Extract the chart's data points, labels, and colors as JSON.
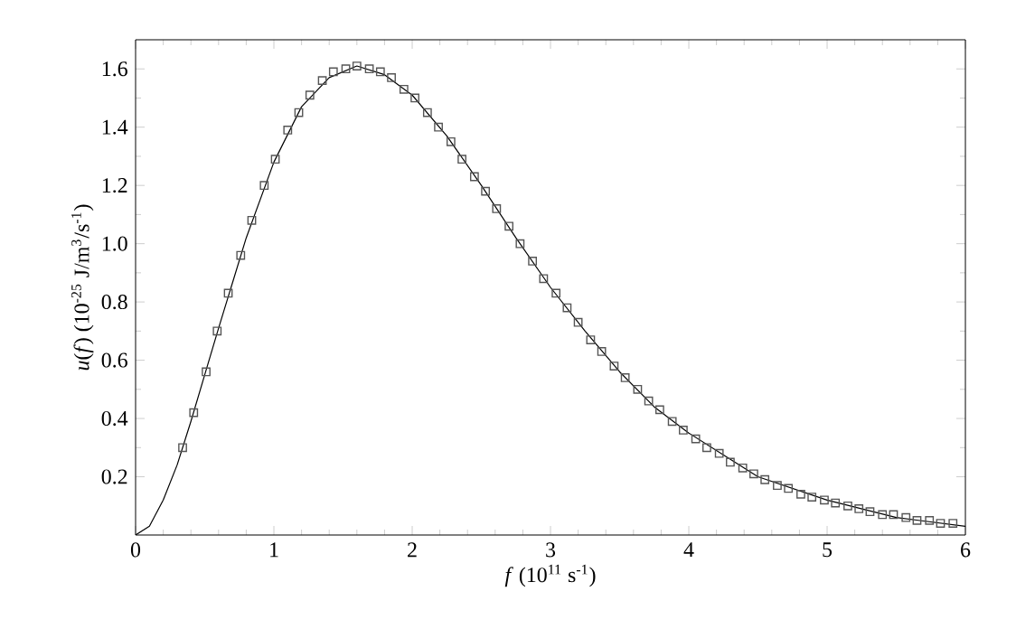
{
  "chart_data": {
    "type": "scatter",
    "xlabel": "*f*  (10$^{11}$ s$^{-1}$)",
    "ylabel": "*u*(*f*)  (10$^{-25}$ J/m$^{3}$/s$^{-1}$)",
    "xlim": [
      0,
      6
    ],
    "ylim": [
      0,
      1.7
    ],
    "xticks": [
      0,
      1,
      2,
      3,
      4,
      5,
      6
    ],
    "yticks": [
      0.2,
      0.4,
      0.6,
      0.8,
      {
        "value": 1,
        "label": "1.0"
      },
      1.2,
      1.4,
      1.6
    ],
    "series": [
      {
        "marker": "square",
        "color": "#555555",
        "x": [
          0.34,
          0.42,
          0.51,
          0.59,
          0.67,
          0.76,
          0.84,
          0.93,
          1.01,
          1.1,
          1.18,
          1.26,
          1.35,
          1.43,
          1.52,
          1.6,
          1.69,
          1.77,
          1.85,
          1.94,
          2.02,
          2.11,
          2.19,
          2.28,
          2.36,
          2.45,
          2.53,
          2.61,
          2.7,
          2.78,
          2.87,
          2.95,
          3.04,
          3.12,
          3.2,
          3.29,
          3.37,
          3.46,
          3.54,
          3.63,
          3.71,
          3.79,
          3.88,
          3.96,
          4.05,
          4.13,
          4.22,
          4.3,
          4.39,
          4.47,
          4.55,
          4.64,
          4.72,
          4.81,
          4.89,
          4.98,
          5.06,
          5.15,
          5.23,
          5.31,
          5.4,
          5.48,
          5.57,
          5.65,
          5.74,
          5.82,
          5.91
        ],
        "values": [
          0.3,
          0.42,
          0.56,
          0.7,
          0.83,
          0.96,
          1.08,
          1.2,
          1.29,
          1.39,
          1.45,
          1.51,
          1.56,
          1.59,
          1.6,
          1.61,
          1.6,
          1.59,
          1.57,
          1.53,
          1.5,
          1.45,
          1.4,
          1.35,
          1.29,
          1.23,
          1.18,
          1.12,
          1.06,
          1.0,
          0.94,
          0.88,
          0.83,
          0.78,
          0.73,
          0.67,
          0.63,
          0.58,
          0.54,
          0.5,
          0.46,
          0.43,
          0.39,
          0.36,
          0.33,
          0.3,
          0.28,
          0.25,
          0.23,
          0.21,
          0.19,
          0.17,
          0.16,
          0.14,
          0.13,
          0.12,
          0.11,
          0.1,
          0.09,
          0.08,
          0.07,
          0.07,
          0.06,
          0.05,
          0.05,
          0.04,
          0.04
        ]
      },
      {
        "type": "line",
        "marker": "none",
        "line_style": "solid",
        "color": "#000000",
        "x": [
          0,
          0.1,
          0.2,
          0.3,
          0.4,
          0.5,
          0.6,
          0.8,
          1.0,
          1.2,
          1.4,
          1.6,
          1.8,
          2.0,
          2.25,
          2.5,
          2.75,
          3.0,
          3.25,
          3.5,
          3.75,
          4.0,
          4.5,
          5.0,
          5.5,
          6.0
        ],
        "values": [
          0,
          0.03,
          0.12,
          0.24,
          0.39,
          0.55,
          0.71,
          1.02,
          1.28,
          1.47,
          1.57,
          1.61,
          1.58,
          1.51,
          1.37,
          1.2,
          1.02,
          0.85,
          0.7,
          0.56,
          0.44,
          0.35,
          0.2,
          0.12,
          0.06,
          0.03
        ]
      }
    ]
  }
}
